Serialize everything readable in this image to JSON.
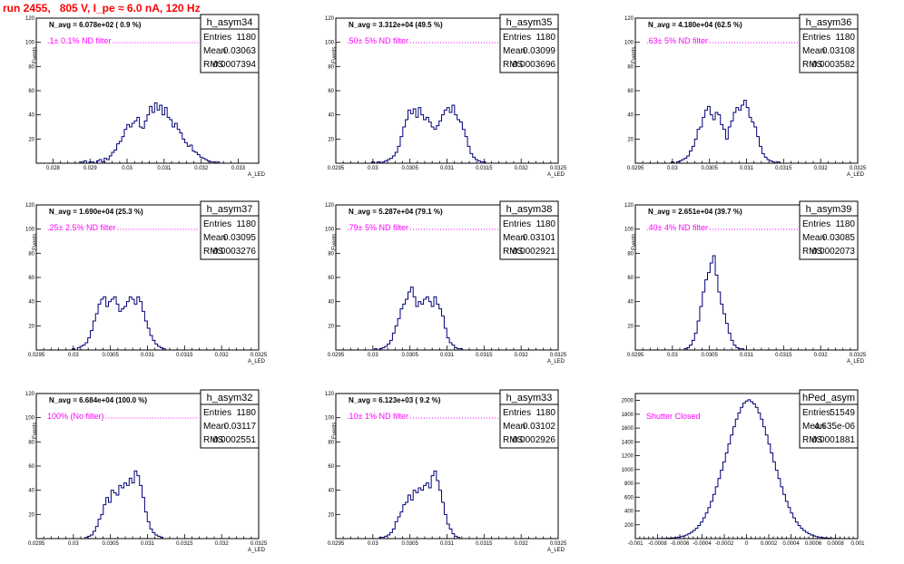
{
  "header": {
    "run_title": "run 2455,   805 V, I_pe ≈ 6.0 nA, 120 Hz"
  },
  "chart_data": [
    {
      "type": "histogram",
      "name": "h_asym34",
      "ylabel": "Events",
      "xlabel": "A_LED",
      "annotation": "N_avg = 6.078e+02 ( 0.9 %)",
      "filter_label": ".1± 0.1% ND filter",
      "stats": {
        "entries_label": "Entries",
        "entries": "1180",
        "mean_label": "Mean",
        "mean": "0.03063",
        "rms_label": "RMS",
        "rms": "0.0007394"
      },
      "xlim": [
        0.02755,
        0.03355
      ],
      "ylim": [
        0,
        120
      ],
      "xticks": [
        0.028,
        0.029,
        0.03,
        0.031,
        0.032,
        0.033
      ],
      "xtick_labels": [
        "0.028",
        "0.029",
        "0.03",
        "0.031",
        "0.032",
        "0.033"
      ],
      "yticks": [
        20,
        40,
        60,
        80,
        100,
        120
      ],
      "bin_start": 0.0287,
      "bin_width": 6.8e-05,
      "counts": [
        1,
        0,
        2,
        0,
        1,
        1,
        0,
        2,
        3,
        1,
        4,
        3,
        6,
        9,
        11,
        16,
        18,
        22,
        28,
        32,
        30,
        33,
        35,
        38,
        30,
        29,
        35,
        40,
        47,
        42,
        50,
        44,
        48,
        40,
        46,
        38,
        36,
        30,
        33,
        28,
        25,
        20,
        17,
        14,
        15,
        10,
        9,
        7,
        5,
        4,
        3,
        2,
        1,
        1,
        0,
        1
      ]
    },
    {
      "type": "histogram",
      "name": "h_asym35",
      "ylabel": "Events",
      "xlabel": "A_LED",
      "annotation": "N_avg = 3.312e+04 (49.5 %)",
      "filter_label": ".50± 5% ND filter",
      "stats": {
        "entries_label": "Entries",
        "entries": "1180",
        "mean_label": "Mean",
        "mean": "0.03099",
        "rms_label": "RMS",
        "rms": "0.0003696"
      },
      "xlim": [
        0.0295,
        0.0325
      ],
      "ylim": [
        0,
        120
      ],
      "xticks": [
        0.0295,
        0.03,
        0.0305,
        0.031,
        0.0315,
        0.032,
        0.0325
      ],
      "xtick_labels": [
        "0.0295",
        "0.03",
        "0.0305",
        "0.031",
        "0.0315",
        "0.032",
        "0.0325"
      ],
      "yticks": [
        20,
        40,
        60,
        80,
        100,
        120
      ],
      "bin_start": 0.02995,
      "bin_width": 3.49e-05,
      "counts": [
        0,
        1,
        0,
        1,
        0,
        1,
        2,
        3,
        4,
        6,
        9,
        14,
        22,
        30,
        36,
        44,
        41,
        45,
        38,
        46,
        40,
        36,
        38,
        34,
        30,
        28,
        31,
        35,
        40,
        44,
        46,
        42,
        48,
        40,
        36,
        34,
        28,
        22,
        14,
        8,
        5,
        3,
        2,
        1,
        1,
        0
      ]
    },
    {
      "type": "histogram",
      "name": "h_asym36",
      "ylabel": "Events",
      "xlabel": "A_LED",
      "annotation": "N_avg = 4.180e+04 (62.5 %)",
      "filter_label": ".63± 5% ND filter",
      "stats": {
        "entries_label": "Entries",
        "entries": "1180",
        "mean_label": "Mean",
        "mean": "0.03108",
        "rms_label": "RMS",
        "rms": "0.0003582"
      },
      "xlim": [
        0.0295,
        0.0325
      ],
      "ylim": [
        0,
        120
      ],
      "xticks": [
        0.0295,
        0.03,
        0.0305,
        0.031,
        0.0315,
        0.032,
        0.0325
      ],
      "xtick_labels": [
        "0.0295",
        "0.03",
        "0.0305",
        "0.031",
        "0.0315",
        "0.032",
        "0.0325"
      ],
      "yticks": [
        20,
        40,
        60,
        80,
        100,
        120
      ],
      "bin_start": 0.02995,
      "bin_width": 3.49e-05,
      "counts": [
        0,
        1,
        0,
        1,
        2,
        3,
        4,
        6,
        10,
        14,
        20,
        28,
        30,
        38,
        44,
        47,
        40,
        36,
        42,
        40,
        32,
        28,
        20,
        30,
        35,
        42,
        46,
        44,
        48,
        52,
        46,
        38,
        34,
        30,
        22,
        14,
        8,
        5,
        3,
        2,
        1,
        0,
        1,
        0,
        0,
        0
      ]
    },
    {
      "type": "histogram",
      "name": "h_asym37",
      "ylabel": "Events",
      "xlabel": "A_LED",
      "annotation": "N_avg = 1.690e+04 (25.3 %)",
      "filter_label": ".25± 2.5% ND filter",
      "stats": {
        "entries_label": "Entries",
        "entries": "1180",
        "mean_label": "Mean",
        "mean": "0.03095",
        "rms_label": "RMS",
        "rms": "0.0003276"
      },
      "xlim": [
        0.0295,
        0.0325
      ],
      "ylim": [
        0,
        120
      ],
      "xticks": [
        0.0295,
        0.03,
        0.0305,
        0.031,
        0.0315,
        0.032,
        0.0325
      ],
      "xtick_labels": [
        "0.0295",
        "0.03",
        "0.0305",
        "0.031",
        "0.0315",
        "0.032",
        "0.0325"
      ],
      "yticks": [
        20,
        40,
        60,
        80,
        100,
        120
      ],
      "bin_start": 0.02995,
      "bin_width": 3.49e-05,
      "counts": [
        0,
        1,
        0,
        2,
        3,
        4,
        6,
        10,
        16,
        24,
        30,
        38,
        42,
        44,
        36,
        40,
        42,
        44,
        38,
        32,
        34,
        36,
        40,
        44,
        42,
        38,
        44,
        40,
        32,
        24,
        18,
        12,
        8,
        5,
        3,
        2,
        1,
        0,
        0,
        0,
        0,
        0,
        0,
        0,
        0,
        0
      ]
    },
    {
      "type": "histogram",
      "name": "h_asym38",
      "ylabel": "Events",
      "xlabel": "A_LED",
      "annotation": "N_avg = 5.287e+04 (79.1 %)",
      "filter_label": ".79± 5% ND filter",
      "stats": {
        "entries_label": "Entries",
        "entries": "1180",
        "mean_label": "Mean",
        "mean": "0.03101",
        "rms_label": "RMS",
        "rms": "0.0002921"
      },
      "xlim": [
        0.0295,
        0.0325
      ],
      "ylim": [
        0,
        120
      ],
      "xticks": [
        0.0295,
        0.03,
        0.0305,
        0.031,
        0.0315,
        0.032,
        0.0325
      ],
      "xtick_labels": [
        "0.0295",
        "0.03",
        "0.0305",
        "0.031",
        "0.0315",
        "0.032",
        "0.0325"
      ],
      "yticks": [
        20,
        40,
        60,
        80,
        100,
        120
      ],
      "bin_start": 0.02995,
      "bin_width": 3.49e-05,
      "counts": [
        0,
        0,
        1,
        0,
        1,
        2,
        3,
        5,
        8,
        14,
        20,
        26,
        34,
        38,
        42,
        48,
        52,
        44,
        36,
        40,
        38,
        42,
        44,
        40,
        36,
        44,
        38,
        34,
        28,
        18,
        10,
        6,
        4,
        2,
        1,
        1,
        0,
        0,
        0,
        0,
        0,
        0,
        0,
        0,
        0,
        0
      ]
    },
    {
      "type": "histogram",
      "name": "h_asym39",
      "ylabel": "Events",
      "xlabel": "A_LED",
      "annotation": "N_avg = 2.651e+04 (39.7 %)",
      "filter_label": ".40± 4% ND filter",
      "stats": {
        "entries_label": "Entries",
        "entries": "1180",
        "mean_label": "Mean",
        "mean": "0.03085",
        "rms_label": "RMS",
        "rms": "0.0002073"
      },
      "xlim": [
        0.0295,
        0.0325
      ],
      "ylim": [
        0,
        120
      ],
      "xticks": [
        0.0295,
        0.03,
        0.0305,
        0.031,
        0.0315,
        0.032,
        0.0325
      ],
      "xtick_labels": [
        "0.0295",
        "0.03",
        "0.0305",
        "0.031",
        "0.0315",
        "0.032",
        "0.0325"
      ],
      "yticks": [
        20,
        40,
        60,
        80,
        100,
        120
      ],
      "bin_start": 0.02995,
      "bin_width": 3.49e-05,
      "counts": [
        0,
        0,
        0,
        0,
        0,
        0,
        1,
        2,
        4,
        8,
        14,
        24,
        36,
        48,
        58,
        64,
        72,
        78,
        62,
        48,
        38,
        30,
        22,
        14,
        8,
        4,
        2,
        1,
        1,
        0,
        0,
        0,
        0,
        0,
        0,
        0,
        0,
        0,
        0,
        0,
        0,
        0,
        0,
        0,
        0,
        0
      ]
    },
    {
      "type": "histogram",
      "name": "h_asym32",
      "ylabel": "Events",
      "xlabel": "A_LED",
      "annotation": "N_avg = 6.684e+04 (100.0 %)",
      "filter_label": "100% (No filter)",
      "stats": {
        "entries_label": "Entries",
        "entries": "1180",
        "mean_label": "Mean",
        "mean": "0.03117",
        "rms_label": "RMS",
        "rms": "0.0002551"
      },
      "xlim": [
        0.0295,
        0.0325
      ],
      "ylim": [
        0,
        120
      ],
      "xticks": [
        0.0295,
        0.03,
        0.0305,
        0.031,
        0.0315,
        0.032,
        0.0325
      ],
      "xtick_labels": [
        "0.0295",
        "0.03",
        "0.0305",
        "0.031",
        "0.0315",
        "0.032",
        "0.0325"
      ],
      "yticks": [
        20,
        40,
        60,
        80,
        100,
        120
      ],
      "bin_start": 0.02995,
      "bin_width": 3.49e-05,
      "counts": [
        0,
        0,
        0,
        0,
        0,
        0,
        1,
        2,
        3,
        6,
        10,
        16,
        20,
        28,
        34,
        30,
        40,
        38,
        36,
        44,
        42,
        46,
        44,
        50,
        46,
        56,
        52,
        44,
        34,
        22,
        14,
        8,
        5,
        3,
        2,
        1,
        0,
        0,
        0,
        0,
        0,
        0,
        0,
        0,
        0,
        0
      ]
    },
    {
      "type": "histogram",
      "name": "h_asym33",
      "ylabel": "Events",
      "xlabel": "A_LED",
      "annotation": "N_avg = 6.123e+03 ( 9.2 %)",
      "filter_label": ".10± 1% ND filter",
      "stats": {
        "entries_label": "Entries",
        "entries": "1180",
        "mean_label": "Mean",
        "mean": "0.03102",
        "rms_label": "RMS",
        "rms": "0.0002926"
      },
      "xlim": [
        0.0295,
        0.0325
      ],
      "ylim": [
        0,
        120
      ],
      "xticks": [
        0.0295,
        0.03,
        0.0305,
        0.031,
        0.0315,
        0.032,
        0.0325
      ],
      "xtick_labels": [
        "0.0295",
        "0.03",
        "0.0305",
        "0.031",
        "0.0315",
        "0.032",
        "0.0325"
      ],
      "yticks": [
        20,
        40,
        60,
        80,
        100,
        120
      ],
      "bin_start": 0.02995,
      "bin_width": 3.49e-05,
      "counts": [
        0,
        0,
        0,
        0,
        1,
        1,
        2,
        3,
        5,
        8,
        14,
        18,
        22,
        28,
        30,
        36,
        32,
        40,
        38,
        42,
        40,
        44,
        46,
        42,
        52,
        56,
        48,
        40,
        30,
        20,
        12,
        8,
        4,
        2,
        1,
        0,
        0,
        0,
        0,
        0,
        0,
        0,
        0,
        0,
        0,
        0
      ]
    },
    {
      "type": "histogram",
      "name": "hPed_asym",
      "ylabel": "",
      "xlabel": "",
      "annotation": "",
      "filter_label": "Shutter Closed",
      "stats": {
        "entries_label": "Entries",
        "entries": "51549",
        "mean_label": "Mean",
        "mean": "4.635e-06",
        "rms_label": "RMS",
        "rms": "0.0001881"
      },
      "xlim": [
        -0.001,
        0.001
      ],
      "ylim": [
        0,
        2100
      ],
      "xticks": [
        -0.001,
        -0.0008,
        -0.0006,
        -0.0004,
        -0.0002,
        0,
        0.0002,
        0.0004,
        0.0006,
        0.0008,
        0.001
      ],
      "xtick_labels": [
        "-0.001",
        "-0.0008",
        "-0.0006",
        "-0.0004",
        "-0.0002",
        "0",
        "0.0002",
        "0.0004",
        "0.0006",
        "0.0008",
        "0.001"
      ],
      "yticks": [
        200,
        400,
        600,
        800,
        1000,
        1200,
        1400,
        1600,
        1800,
        2000
      ],
      "bin_start": -0.00082,
      "bin_width": 2.25e-05,
      "counts": [
        0,
        1,
        2,
        3,
        4,
        6,
        8,
        12,
        16,
        22,
        30,
        40,
        52,
        70,
        92,
        118,
        150,
        190,
        240,
        300,
        370,
        450,
        540,
        640,
        750,
        870,
        990,
        1110,
        1240,
        1370,
        1500,
        1620,
        1730,
        1820,
        1900,
        1960,
        1990,
        2010,
        1980,
        1950,
        1900,
        1820,
        1730,
        1620,
        1500,
        1370,
        1240,
        1110,
        990,
        870,
        750,
        640,
        540,
        450,
        370,
        300,
        240,
        190,
        150,
        118,
        92,
        70,
        52,
        40,
        30,
        22,
        16,
        12,
        8,
        6,
        4,
        3,
        2,
        1,
        0
      ]
    }
  ]
}
